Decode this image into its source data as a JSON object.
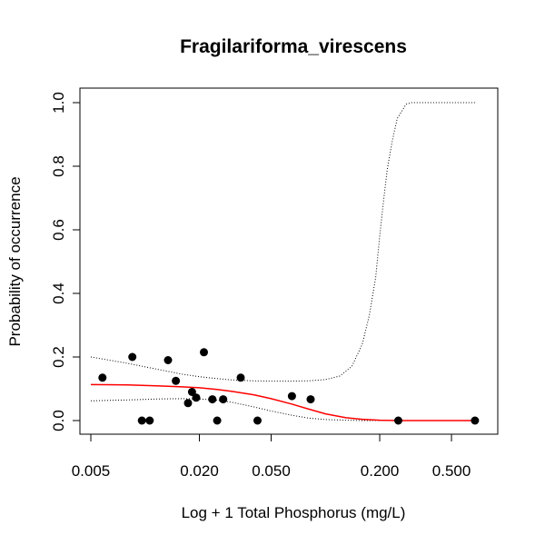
{
  "chart_data": {
    "type": "scatter",
    "title": "Fragilariforma_virescens",
    "xlabel": "Log + 1 Total Phosphorus (mg/L)",
    "ylabel": "Probability of occurrence",
    "x_scale": "log",
    "x_ticks": [
      0.005,
      0.02,
      0.05,
      0.2,
      0.5
    ],
    "x_tick_labels": [
      "0.005",
      "0.020",
      "0.050",
      "0.200",
      "0.500"
    ],
    "y_ticks": [
      0.0,
      0.2,
      0.4,
      0.6,
      0.8,
      1.0
    ],
    "y_tick_labels": [
      "0.0",
      "0.2",
      "0.4",
      "0.6",
      "0.8",
      "1.0"
    ],
    "xlim": [
      0.005,
      0.75
    ],
    "ylim": [
      -0.04,
      1.04
    ],
    "grid": false,
    "colors": {
      "fit": "#ff0000",
      "points": "#000000",
      "ci": "#000000"
    },
    "points": {
      "x": [
        0.0058,
        0.0085,
        0.0096,
        0.0106,
        0.0134,
        0.0148,
        0.0173,
        0.0182,
        0.0192,
        0.0212,
        0.0236,
        0.0251,
        0.0271,
        0.0339,
        0.042,
        0.0652,
        0.0828,
        0.2536,
        0.6748
      ],
      "y": [
        0.135,
        0.2,
        0.0,
        0.0,
        0.19,
        0.125,
        0.055,
        0.09,
        0.072,
        0.215,
        0.067,
        0.0,
        0.067,
        0.135,
        0.0,
        0.077,
        0.067,
        0.0,
        0.0
      ]
    },
    "fit_line": {
      "x": [
        0.005,
        0.008,
        0.012,
        0.016,
        0.02,
        0.025,
        0.03,
        0.04,
        0.05,
        0.065,
        0.08,
        0.1,
        0.13,
        0.16,
        0.2,
        0.25,
        0.3,
        0.4,
        0.5,
        0.675
      ],
      "y": [
        0.113,
        0.112,
        0.109,
        0.106,
        0.103,
        0.098,
        0.092,
        0.081,
        0.069,
        0.052,
        0.037,
        0.021,
        0.009,
        0.004,
        0.001,
        0.0,
        0.0,
        0.0,
        0.0,
        0.0
      ]
    },
    "ci_upper": {
      "x": [
        0.005,
        0.008,
        0.012,
        0.016,
        0.02,
        0.025,
        0.03,
        0.04,
        0.05,
        0.065,
        0.08,
        0.1,
        0.12,
        0.14,
        0.16,
        0.175,
        0.19,
        0.2,
        0.21,
        0.22,
        0.235,
        0.25,
        0.28,
        0.3,
        0.4,
        0.5,
        0.675
      ],
      "y": [
        0.2,
        0.18,
        0.16,
        0.146,
        0.138,
        0.132,
        0.128,
        0.125,
        0.124,
        0.124,
        0.125,
        0.129,
        0.14,
        0.17,
        0.24,
        0.33,
        0.45,
        0.58,
        0.69,
        0.79,
        0.88,
        0.95,
        0.995,
        1.0,
        1.0,
        1.0,
        1.0
      ]
    },
    "ci_lower": {
      "x": [
        0.005,
        0.008,
        0.012,
        0.016,
        0.02,
        0.025,
        0.03,
        0.035,
        0.04,
        0.05,
        0.065,
        0.08,
        0.1,
        0.13,
        0.16,
        0.2,
        0.25,
        0.3,
        0.4,
        0.5,
        0.675
      ],
      "y": [
        0.062,
        0.065,
        0.068,
        0.069,
        0.068,
        0.064,
        0.058,
        0.05,
        0.043,
        0.03,
        0.017,
        0.008,
        0.003,
        0.001,
        0.0,
        0.0,
        0.0,
        0.0,
        0.0,
        0.0,
        0.0
      ]
    }
  }
}
